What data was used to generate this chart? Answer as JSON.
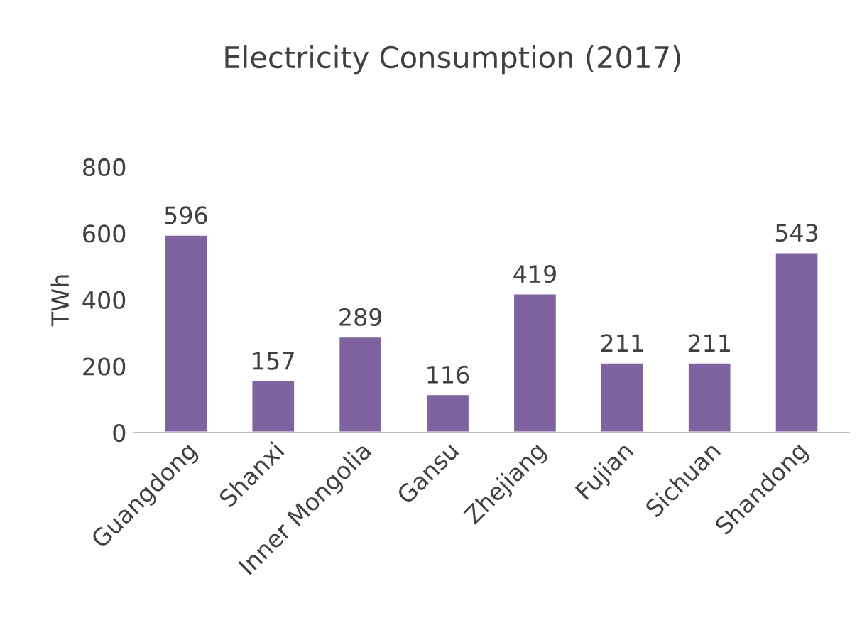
{
  "chart_data": {
    "type": "bar",
    "title": "Electricity Consumption (2017)",
    "ylabel": "TWh",
    "categories": [
      "Guangdong",
      "Shanxi",
      "Inner Mongolia",
      "Gansu",
      "Zhejiang",
      "Fujian",
      "Sichuan",
      "Shandong"
    ],
    "values": [
      596,
      157,
      289,
      116,
      419,
      211,
      211,
      543
    ],
    "color": "#7e63a0",
    "ylim": [
      0,
      800
    ],
    "yticks": [
      0,
      200,
      400,
      600,
      800
    ],
    "grid": false,
    "data_labels": true
  }
}
